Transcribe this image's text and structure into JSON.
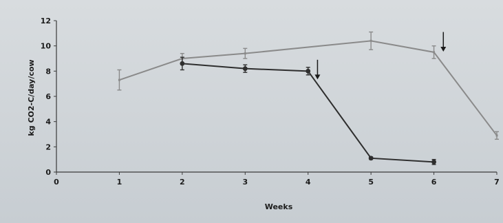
{
  "chart_data": {
    "type": "line",
    "xlabel": "Weeks",
    "ylabel": "kg CO2-C/day/cow",
    "xlim": [
      0,
      7
    ],
    "ylim": [
      0,
      12
    ],
    "x_ticks": [
      "0",
      "1",
      "2",
      "3",
      "4",
      "5",
      "6",
      "7"
    ],
    "y_ticks": [
      "0",
      "2",
      "4",
      "6",
      "8",
      "10",
      "12"
    ],
    "grid": false,
    "legend": "none",
    "series": [
      {
        "color": "#8a8a8a",
        "marker": "bar",
        "points": [
          {
            "x": 1,
            "y": 7.3,
            "err": 0.8
          },
          {
            "x": 2,
            "y": 9.0,
            "err": 0.4
          },
          {
            "x": 3,
            "y": 9.4,
            "err": 0.4
          },
          {
            "x": 5,
            "y": 10.4,
            "err": 0.7
          },
          {
            "x": 6,
            "y": 9.5,
            "err": 0.5
          },
          {
            "x": 7,
            "y": 2.9,
            "err": 0.3
          }
        ]
      },
      {
        "color": "#2e2e2e",
        "marker": "dot",
        "points": [
          {
            "x": 2,
            "y": 8.6,
            "err": 0.5
          },
          {
            "x": 3,
            "y": 8.2,
            "err": 0.3
          },
          {
            "x": 4,
            "y": 8.0,
            "err": 0.3
          },
          {
            "x": 5,
            "y": 1.1,
            "err": 0.1
          },
          {
            "x": 6,
            "y": 0.8,
            "err": 0.2
          }
        ]
      }
    ],
    "annotations": [
      {
        "type": "arrow-down",
        "x": 4.15,
        "y_top": 8.9,
        "y_bottom": 7.4
      },
      {
        "type": "arrow-down",
        "x": 6.15,
        "y_top": 11.1,
        "y_bottom": 9.6
      }
    ]
  }
}
